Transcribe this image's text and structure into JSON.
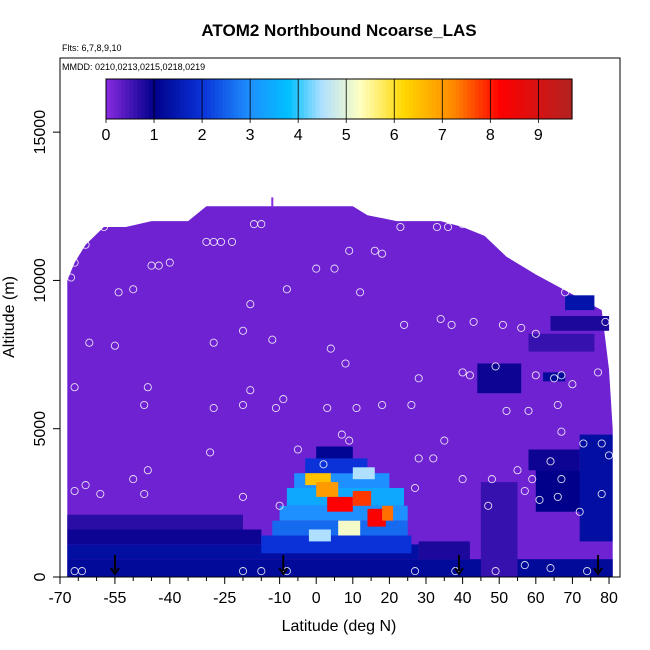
{
  "chart_data": {
    "type": "heatmap",
    "title": "ATOM2 Northbound Ncoarse_LAS",
    "flights_note": "Flts: 6,7,8,9,10",
    "dates_note": "MMDD: 0210,0213,0215,0218,0219",
    "xlabel": "Latitude (deg N)",
    "ylabel": "Altitude (m)",
    "xlim": [
      -70,
      83
    ],
    "ylim": [
      0,
      17500
    ],
    "x_tick_labels": [
      "-70",
      "-55",
      "-40",
      "-25",
      "-10",
      "0",
      "10",
      "20",
      "30",
      "40",
      "50",
      "60",
      "70",
      "80"
    ],
    "x_tick_values": [
      -70,
      -55,
      -40,
      -25,
      -10,
      0,
      10,
      20,
      30,
      40,
      50,
      60,
      70,
      80
    ],
    "x_minor_ticks": [
      -65,
      -60,
      -50,
      -45,
      -35,
      -30,
      -20,
      -15,
      -5,
      5,
      15,
      25,
      35,
      45,
      55,
      65,
      75
    ],
    "y_tick_labels": [
      "0",
      "5000",
      "10000",
      "15000"
    ],
    "y_tick_values": [
      0,
      5000,
      10000,
      15000
    ],
    "colorbar": {
      "min": 0,
      "max": 9.7,
      "tick_labels": [
        "0",
        "1",
        "2",
        "3",
        "4",
        "5",
        "6",
        "7",
        "8",
        "9"
      ],
      "tick_values": [
        0,
        1,
        2,
        3,
        4,
        5,
        6,
        7,
        8,
        9
      ],
      "stops": [
        {
          "v": 0.0,
          "color": "#8a2be2"
        },
        {
          "v": 1.0,
          "color": "#00008b"
        },
        {
          "v": 2.0,
          "color": "#0a32d8"
        },
        {
          "v": 3.0,
          "color": "#1e90ff"
        },
        {
          "v": 3.8,
          "color": "#00bfff"
        },
        {
          "v": 4.5,
          "color": "#b0e0ff"
        },
        {
          "v": 5.3,
          "color": "#ffffc0"
        },
        {
          "v": 6.2,
          "color": "#ffd700"
        },
        {
          "v": 7.2,
          "color": "#ff8c00"
        },
        {
          "v": 8.2,
          "color": "#ff0000"
        },
        {
          "v": 9.7,
          "color": "#b22222"
        }
      ]
    },
    "background_value": 0.2,
    "domain_top": [
      {
        "x": -68,
        "y": 10000
      },
      {
        "x": -66,
        "y": 10600
      },
      {
        "x": -63,
        "y": 11200
      },
      {
        "x": -58,
        "y": 11800
      },
      {
        "x": -52,
        "y": 11800
      },
      {
        "x": -45,
        "y": 12000
      },
      {
        "x": -35,
        "y": 12000
      },
      {
        "x": -30,
        "y": 12500
      },
      {
        "x": 10,
        "y": 12500
      },
      {
        "x": 14,
        "y": 12200
      },
      {
        "x": 22,
        "y": 12000
      },
      {
        "x": 34,
        "y": 12000
      },
      {
        "x": 40,
        "y": 11800
      },
      {
        "x": 46,
        "y": 11500
      },
      {
        "x": 52,
        "y": 10800
      },
      {
        "x": 60,
        "y": 10200
      },
      {
        "x": 66,
        "y": 9800
      },
      {
        "x": 72,
        "y": 9400
      },
      {
        "x": 78,
        "y": 9000
      },
      {
        "x": 80,
        "y": 7000
      },
      {
        "x": 81,
        "y": 5000
      }
    ],
    "patches": [
      {
        "x": [
          -68,
          81
        ],
        "y": [
          0,
          600
        ],
        "value": 1.2
      },
      {
        "x": [
          -68,
          28
        ],
        "y": [
          600,
          1100
        ],
        "value": 1.3
      },
      {
        "x": [
          -68,
          -15
        ],
        "y": [
          1100,
          1600
        ],
        "value": 0.9
      },
      {
        "x": [
          -68,
          -20
        ],
        "y": [
          1600,
          2100
        ],
        "value": 0.7
      },
      {
        "x": [
          -15,
          26
        ],
        "y": [
          800,
          1400
        ],
        "value": 2.0
      },
      {
        "x": [
          -12,
          25
        ],
        "y": [
          1400,
          1900
        ],
        "value": 2.6
      },
      {
        "x": [
          -10,
          25
        ],
        "y": [
          1900,
          2400
        ],
        "value": 3.0
      },
      {
        "x": [
          -8,
          24
        ],
        "y": [
          2400,
          3000
        ],
        "value": 3.4
      },
      {
        "x": [
          -6,
          20
        ],
        "y": [
          3000,
          3500
        ],
        "value": 3.0
      },
      {
        "x": [
          -3,
          14
        ],
        "y": [
          3500,
          4000
        ],
        "value": 2.0
      },
      {
        "x": [
          0,
          10
        ],
        "y": [
          4000,
          4400
        ],
        "value": 1.1
      },
      {
        "x": [
          -3,
          4
        ],
        "y": [
          3100,
          3500
        ],
        "value": 6.5
      },
      {
        "x": [
          0,
          6
        ],
        "y": [
          2700,
          3200
        ],
        "value": 7.0
      },
      {
        "x": [
          3,
          10
        ],
        "y": [
          2200,
          2700
        ],
        "value": 8.2
      },
      {
        "x": [
          10,
          15
        ],
        "y": [
          2400,
          2900
        ],
        "value": 7.8
      },
      {
        "x": [
          14,
          19
        ],
        "y": [
          1700,
          2300
        ],
        "value": 8.3
      },
      {
        "x": [
          18,
          21
        ],
        "y": [
          1900,
          2400
        ],
        "value": 7.4
      },
      {
        "x": [
          6,
          12
        ],
        "y": [
          1400,
          1900
        ],
        "value": 5.2
      },
      {
        "x": [
          -2,
          4
        ],
        "y": [
          1200,
          1600
        ],
        "value": 4.5
      },
      {
        "x": [
          10,
          16
        ],
        "y": [
          3300,
          3700
        ],
        "value": 4.5
      },
      {
        "x": [
          28,
          42
        ],
        "y": [
          600,
          1200
        ],
        "value": 0.8
      },
      {
        "x": [
          45,
          55
        ],
        "y": [
          0,
          3200
        ],
        "value": 0.6
      },
      {
        "x": [
          58,
          72
        ],
        "y": [
          3600,
          4300
        ],
        "value": 0.9
      },
      {
        "x": [
          60,
          80
        ],
        "y": [
          2200,
          3600
        ],
        "value": 1.0
      },
      {
        "x": [
          72,
          81
        ],
        "y": [
          1200,
          4800
        ],
        "value": 1.3
      },
      {
        "x": [
          44,
          56
        ],
        "y": [
          6200,
          7200
        ],
        "value": 0.9
      },
      {
        "x": [
          58,
          76
        ],
        "y": [
          7600,
          8200
        ],
        "value": 0.6
      },
      {
        "x": [
          64,
          80
        ],
        "y": [
          8300,
          8800
        ],
        "value": 0.8
      },
      {
        "x": [
          68,
          76
        ],
        "y": [
          9000,
          9500
        ],
        "value": 1.4
      },
      {
        "x": [
          62,
          68
        ],
        "y": [
          6600,
          6900
        ],
        "value": 1.2
      }
    ],
    "flight_points": [
      {
        "x": -67,
        "y": 10100
      },
      {
        "x": -66,
        "y": 10600
      },
      {
        "x": -63,
        "y": 11200
      },
      {
        "x": -58,
        "y": 11800
      },
      {
        "x": -62,
        "y": 7900
      },
      {
        "x": -66,
        "y": 6400
      },
      {
        "x": -55,
        "y": 7800
      },
      {
        "x": -50,
        "y": 9700
      },
      {
        "x": -54,
        "y": 9600
      },
      {
        "x": -45,
        "y": 10500
      },
      {
        "x": -43,
        "y": 10500
      },
      {
        "x": -40,
        "y": 10600
      },
      {
        "x": -47,
        "y": 5800
      },
      {
        "x": -46,
        "y": 6400
      },
      {
        "x": -46,
        "y": 3600
      },
      {
        "x": -50,
        "y": 3300
      },
      {
        "x": -47,
        "y": 2800
      },
      {
        "x": -59,
        "y": 2800
      },
      {
        "x": -66,
        "y": 2900
      },
      {
        "x": -63,
        "y": 3100
      },
      {
        "x": -64,
        "y": 200
      },
      {
        "x": -66,
        "y": 200
      },
      {
        "x": -30,
        "y": 11300
      },
      {
        "x": -28,
        "y": 11300
      },
      {
        "x": -26,
        "y": 11300
      },
      {
        "x": -23,
        "y": 11300
      },
      {
        "x": -17,
        "y": 11900
      },
      {
        "x": -15,
        "y": 11900
      },
      {
        "x": -18,
        "y": 9200
      },
      {
        "x": -20,
        "y": 8300
      },
      {
        "x": -28,
        "y": 7900
      },
      {
        "x": -12,
        "y": 8000
      },
      {
        "x": -8,
        "y": 9700
      },
      {
        "x": -28,
        "y": 5700
      },
      {
        "x": -20,
        "y": 5800
      },
      {
        "x": -11,
        "y": 5700
      },
      {
        "x": -9,
        "y": 6000
      },
      {
        "x": -18,
        "y": 6300
      },
      {
        "x": -29,
        "y": 4200
      },
      {
        "x": -20,
        "y": 2700
      },
      {
        "x": -10,
        "y": 2400
      },
      {
        "x": -20,
        "y": 200
      },
      {
        "x": -8,
        "y": 200
      },
      {
        "x": -5,
        "y": 4300
      },
      {
        "x": 0,
        "y": 10400
      },
      {
        "x": 5,
        "y": 10400
      },
      {
        "x": 9,
        "y": 11000
      },
      {
        "x": 16,
        "y": 11000
      },
      {
        "x": 18,
        "y": 10900
      },
      {
        "x": 12,
        "y": 9600
      },
      {
        "x": 8,
        "y": 7200
      },
      {
        "x": 4,
        "y": 7700
      },
      {
        "x": 3,
        "y": 5700
      },
      {
        "x": 2,
        "y": 3800
      },
      {
        "x": 7,
        "y": 4800
      },
      {
        "x": 9,
        "y": 4600
      },
      {
        "x": 11,
        "y": 5700
      },
      {
        "x": 18,
        "y": 5800
      },
      {
        "x": 26,
        "y": 5800
      },
      {
        "x": 28,
        "y": 6700
      },
      {
        "x": 24,
        "y": 8500
      },
      {
        "x": 23,
        "y": 11800
      },
      {
        "x": 33,
        "y": 11800
      },
      {
        "x": 36,
        "y": 11800
      },
      {
        "x": 40,
        "y": 11900
      },
      {
        "x": 34,
        "y": 8700
      },
      {
        "x": 37,
        "y": 8500
      },
      {
        "x": 43,
        "y": 8600
      },
      {
        "x": 51,
        "y": 8500
      },
      {
        "x": 56,
        "y": 8400
      },
      {
        "x": 60,
        "y": 8200
      },
      {
        "x": 40,
        "y": 6900
      },
      {
        "x": 42,
        "y": 6800
      },
      {
        "x": 49,
        "y": 7100
      },
      {
        "x": 60,
        "y": 6800
      },
      {
        "x": 67,
        "y": 6800
      },
      {
        "x": 65,
        "y": 6700
      },
      {
        "x": 70,
        "y": 6500
      },
      {
        "x": 77,
        "y": 6900
      },
      {
        "x": 52,
        "y": 5600
      },
      {
        "x": 58,
        "y": 5600
      },
      {
        "x": 66,
        "y": 5800
      },
      {
        "x": 67,
        "y": 4900
      },
      {
        "x": 73,
        "y": 4500
      },
      {
        "x": 78,
        "y": 4500
      },
      {
        "x": 80,
        "y": 4100
      },
      {
        "x": 64,
        "y": 3900
      },
      {
        "x": 28,
        "y": 4000
      },
      {
        "x": 32,
        "y": 4000
      },
      {
        "x": 35,
        "y": 4600
      },
      {
        "x": 40,
        "y": 3300
      },
      {
        "x": 48,
        "y": 3300
      },
      {
        "x": 55,
        "y": 3600
      },
      {
        "x": 57,
        "y": 2900
      },
      {
        "x": 59,
        "y": 3300
      },
      {
        "x": 67,
        "y": 3300
      },
      {
        "x": 61,
        "y": 2600
      },
      {
        "x": 66,
        "y": 2700
      },
      {
        "x": 72,
        "y": 2200
      },
      {
        "x": 78,
        "y": 2800
      },
      {
        "x": 47,
        "y": 2400
      },
      {
        "x": 27,
        "y": 3000
      },
      {
        "x": 27,
        "y": 200
      },
      {
        "x": 38,
        "y": 200
      },
      {
        "x": 49,
        "y": 200
      },
      {
        "x": 57,
        "y": 400
      },
      {
        "x": 64,
        "y": 300
      },
      {
        "x": 74,
        "y": 200
      },
      {
        "x": 68,
        "y": 9600
      },
      {
        "x": 79,
        "y": 8600
      },
      {
        "x": -15,
        "y": 200
      }
    ],
    "arrows_x": [
      -55,
      -9,
      39,
      77
    ],
    "top_marker": {
      "x": -12,
      "y": 12800
    }
  }
}
